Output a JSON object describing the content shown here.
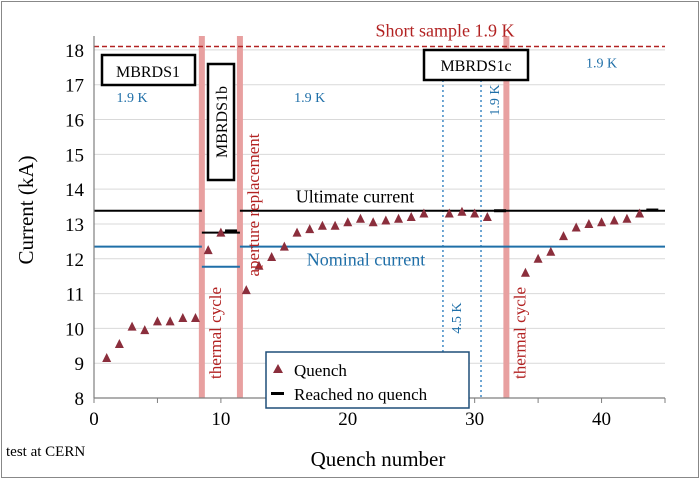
{
  "chart_data": {
    "type": "scatter",
    "xlabel": "Quench number",
    "ylabel": "Current (kA)",
    "xlim": [
      0,
      45
    ],
    "ylim": [
      8,
      18.4
    ],
    "x_ticks": [
      "0",
      "10",
      "20",
      "30",
      "40"
    ],
    "x_tick_values": [
      0,
      10,
      20,
      30,
      40
    ],
    "y_ticks": [
      "8",
      "9",
      "10",
      "11",
      "12",
      "13",
      "14",
      "15",
      "16",
      "17",
      "18"
    ],
    "y_tick_values": [
      8,
      9,
      10,
      11,
      12,
      13,
      14,
      15,
      16,
      17,
      18
    ],
    "grid": "horizontal",
    "footnote": "test at CERN",
    "legend": {
      "placement": "bottom-center",
      "quench_label": "Quench",
      "no_quench_label": "Reached no quench"
    },
    "series": [
      {
        "name": "Quench",
        "marker": "triangle",
        "color": "#8b2e3c",
        "points": [
          [
            1,
            9.15
          ],
          [
            2,
            9.55
          ],
          [
            3,
            10.05
          ],
          [
            4,
            9.95
          ],
          [
            5,
            10.2
          ],
          [
            6,
            10.2
          ],
          [
            7,
            10.3
          ],
          [
            8,
            10.3
          ],
          [
            9,
            12.25
          ],
          [
            10,
            12.75
          ],
          [
            12,
            11.1
          ],
          [
            13,
            11.8
          ],
          [
            14,
            12.05
          ],
          [
            15,
            12.35
          ],
          [
            16,
            12.75
          ],
          [
            17,
            12.85
          ],
          [
            18,
            12.95
          ],
          [
            19,
            12.95
          ],
          [
            20,
            13.05
          ],
          [
            21,
            13.15
          ],
          [
            22,
            13.05
          ],
          [
            23,
            13.1
          ],
          [
            24,
            13.15
          ],
          [
            25,
            13.2
          ],
          [
            26,
            13.3
          ],
          [
            28,
            13.3
          ],
          [
            29,
            13.35
          ],
          [
            30,
            13.3
          ],
          [
            31,
            13.2
          ],
          [
            34,
            11.6
          ],
          [
            35,
            12.0
          ],
          [
            36,
            12.2
          ],
          [
            37,
            12.65
          ],
          [
            38,
            12.9
          ],
          [
            39,
            13.0
          ],
          [
            40,
            13.05
          ],
          [
            41,
            13.1
          ],
          [
            42,
            13.15
          ],
          [
            43,
            13.3
          ]
        ]
      },
      {
        "name": "Reached no quench",
        "marker": "dash",
        "color": "#000000",
        "points": [
          [
            10.8,
            12.8
          ],
          [
            32,
            13.38
          ],
          [
            44,
            13.4
          ]
        ]
      }
    ],
    "reference_lines": [
      {
        "label": "Short sample 1.9 K",
        "y": 18.1,
        "x_range": [
          0,
          45
        ],
        "color": "#b22222",
        "style": "dashed"
      },
      {
        "label": "Ultimate current",
        "segments": [
          [
            0,
            8.5,
            13.38
          ],
          [
            8.5,
            11.5,
            12.75
          ],
          [
            11.5,
            45,
            13.38
          ]
        ],
        "color": "#000000",
        "style": "solid"
      },
      {
        "label": "Nominal current",
        "segments": [
          [
            0,
            8.5,
            12.35
          ],
          [
            8.5,
            11.5,
            11.77
          ],
          [
            11.5,
            45,
            12.35
          ]
        ],
        "color": "#1f6fa8",
        "style": "solid"
      }
    ],
    "thermal_cycles": [
      {
        "x": 8.5,
        "label": "thermal cycle"
      },
      {
        "x": 11.5,
        "label": "aperture replacement"
      },
      {
        "x": 32.5,
        "label": "thermal cycle"
      }
    ],
    "temperature_changes": [
      {
        "x": 27.5,
        "label": "4.5 K"
      },
      {
        "x": 30.5,
        "label": "1.9 K"
      }
    ],
    "temperature_labels": [
      {
        "x": 3.0,
        "y": 16.5,
        "label": "1.9 K"
      },
      {
        "x": 17.0,
        "y": 16.5,
        "label": "1.9 K"
      },
      {
        "x": 40.0,
        "y": 17.5,
        "label": "1.9 K"
      }
    ],
    "phase_boxes": [
      "MBRDS1",
      "MBRDS1b",
      "MBRDS1c"
    ],
    "colors": {
      "thermal_cycle_band": "#e8a0a0",
      "thermal_cycle_text": "#b22222",
      "temperature_text": "#1f6fa8",
      "short_sample": "#b22222"
    }
  }
}
